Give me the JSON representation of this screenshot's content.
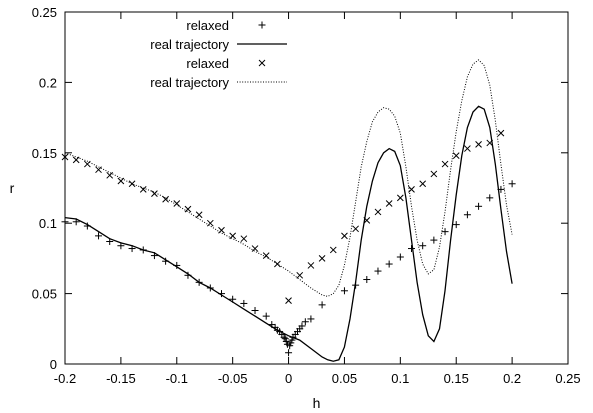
{
  "chart_data": {
    "type": "scatter",
    "xlabel": "h",
    "ylabel": "r",
    "xlim": [
      -0.2,
      0.25
    ],
    "ylim": [
      0,
      0.25
    ],
    "x_ticks": [
      "-0.2",
      "-0.15",
      "-0.1",
      "-0.05",
      "0",
      "0.05",
      "0.1",
      "0.15",
      "0.2",
      "0.25"
    ],
    "y_ticks": [
      "0",
      "0.05",
      "0.1",
      "0.15",
      "0.2",
      "0.25"
    ],
    "grid": false,
    "legend_position": "top-left",
    "series": [
      {
        "name": "relaxed",
        "style": "plus",
        "color": "#000000",
        "points": [
          [
            -0.2,
            0.101
          ],
          [
            -0.19,
            0.101
          ],
          [
            -0.18,
            0.098
          ],
          [
            -0.17,
            0.091
          ],
          [
            -0.16,
            0.087
          ],
          [
            -0.15,
            0.084
          ],
          [
            -0.14,
            0.082
          ],
          [
            -0.13,
            0.081
          ],
          [
            -0.12,
            0.077
          ],
          [
            -0.11,
            0.073
          ],
          [
            -0.1,
            0.07
          ],
          [
            -0.09,
            0.063
          ],
          [
            -0.08,
            0.058
          ],
          [
            -0.07,
            0.054
          ],
          [
            -0.06,
            0.05
          ],
          [
            -0.05,
            0.046
          ],
          [
            -0.04,
            0.043
          ],
          [
            -0.03,
            0.038
          ],
          [
            -0.02,
            0.034
          ],
          [
            -0.015,
            0.028
          ],
          [
            -0.012,
            0.026
          ],
          [
            -0.01,
            0.024
          ],
          [
            -0.008,
            0.023
          ],
          [
            -0.006,
            0.021
          ],
          [
            -0.004,
            0.019
          ],
          [
            -0.003,
            0.018
          ],
          [
            -0.002,
            0.016
          ],
          [
            -0.001,
            0.014
          ],
          [
            0.0,
            0.008
          ],
          [
            0.001,
            0.013
          ],
          [
            0.002,
            0.015
          ],
          [
            0.003,
            0.017
          ],
          [
            0.004,
            0.019
          ],
          [
            0.006,
            0.021
          ],
          [
            0.008,
            0.023
          ],
          [
            0.01,
            0.025
          ],
          [
            0.012,
            0.027
          ],
          [
            0.015,
            0.03
          ],
          [
            0.02,
            0.032
          ],
          [
            0.03,
            0.042
          ],
          [
            0.05,
            0.052
          ],
          [
            0.06,
            0.056
          ],
          [
            0.07,
            0.06
          ],
          [
            0.08,
            0.066
          ],
          [
            0.09,
            0.071
          ],
          [
            0.1,
            0.076
          ],
          [
            0.11,
            0.082
          ],
          [
            0.12,
            0.084
          ],
          [
            0.13,
            0.088
          ],
          [
            0.14,
            0.094
          ],
          [
            0.15,
            0.099
          ],
          [
            0.16,
            0.106
          ],
          [
            0.17,
            0.112
          ],
          [
            0.18,
            0.118
          ],
          [
            0.19,
            0.124
          ],
          [
            0.2,
            0.128
          ]
        ]
      },
      {
        "name": "real trajectory",
        "style": "solid",
        "color": "#000000",
        "points": [
          [
            -0.2,
            0.104
          ],
          [
            -0.19,
            0.103
          ],
          [
            -0.18,
            0.099
          ],
          [
            -0.17,
            0.094
          ],
          [
            -0.16,
            0.089
          ],
          [
            -0.15,
            0.086
          ],
          [
            -0.14,
            0.084
          ],
          [
            -0.13,
            0.081
          ],
          [
            -0.12,
            0.079
          ],
          [
            -0.11,
            0.074
          ],
          [
            -0.1,
            0.069
          ],
          [
            -0.09,
            0.064
          ],
          [
            -0.08,
            0.058
          ],
          [
            -0.07,
            0.054
          ],
          [
            -0.06,
            0.049
          ],
          [
            -0.05,
            0.044
          ],
          [
            -0.04,
            0.039
          ],
          [
            -0.03,
            0.034
          ],
          [
            -0.02,
            0.029
          ],
          [
            -0.01,
            0.024
          ],
          [
            0.0,
            0.02
          ],
          [
            0.01,
            0.017
          ],
          [
            0.02,
            0.011
          ],
          [
            0.03,
            0.005
          ],
          [
            0.035,
            0.003
          ],
          [
            0.04,
            0.002
          ],
          [
            0.045,
            0.003
          ],
          [
            0.05,
            0.012
          ],
          [
            0.055,
            0.032
          ],
          [
            0.06,
            0.058
          ],
          [
            0.065,
            0.088
          ],
          [
            0.07,
            0.112
          ],
          [
            0.075,
            0.13
          ],
          [
            0.08,
            0.143
          ],
          [
            0.085,
            0.15
          ],
          [
            0.09,
            0.153
          ],
          [
            0.095,
            0.151
          ],
          [
            0.1,
            0.141
          ],
          [
            0.105,
            0.118
          ],
          [
            0.11,
            0.088
          ],
          [
            0.115,
            0.058
          ],
          [
            0.12,
            0.035
          ],
          [
            0.125,
            0.02
          ],
          [
            0.13,
            0.016
          ],
          [
            0.135,
            0.025
          ],
          [
            0.14,
            0.052
          ],
          [
            0.145,
            0.088
          ],
          [
            0.15,
            0.12
          ],
          [
            0.155,
            0.148
          ],
          [
            0.16,
            0.168
          ],
          [
            0.165,
            0.179
          ],
          [
            0.17,
            0.183
          ],
          [
            0.175,
            0.181
          ],
          [
            0.18,
            0.168
          ],
          [
            0.185,
            0.142
          ],
          [
            0.19,
            0.11
          ],
          [
            0.195,
            0.08
          ],
          [
            0.2,
            0.057
          ]
        ]
      },
      {
        "name": "relaxed",
        "style": "cross",
        "color": "#000000",
        "points": [
          [
            -0.2,
            0.147
          ],
          [
            -0.19,
            0.145
          ],
          [
            -0.18,
            0.142
          ],
          [
            -0.17,
            0.138
          ],
          [
            -0.16,
            0.134
          ],
          [
            -0.15,
            0.13
          ],
          [
            -0.14,
            0.128
          ],
          [
            -0.13,
            0.124
          ],
          [
            -0.12,
            0.121
          ],
          [
            -0.11,
            0.117
          ],
          [
            -0.1,
            0.114
          ],
          [
            -0.09,
            0.11
          ],
          [
            -0.08,
            0.106
          ],
          [
            -0.07,
            0.1
          ],
          [
            -0.06,
            0.095
          ],
          [
            -0.05,
            0.091
          ],
          [
            -0.04,
            0.089
          ],
          [
            -0.03,
            0.082
          ],
          [
            -0.02,
            0.077
          ],
          [
            -0.01,
            0.071
          ],
          [
            0.0,
            0.045
          ],
          [
            0.01,
            0.063
          ],
          [
            0.02,
            0.07
          ],
          [
            0.03,
            0.075
          ],
          [
            0.04,
            0.081
          ],
          [
            0.05,
            0.091
          ],
          [
            0.06,
            0.096
          ],
          [
            0.07,
            0.102
          ],
          [
            0.08,
            0.108
          ],
          [
            0.09,
            0.114
          ],
          [
            0.1,
            0.118
          ],
          [
            0.11,
            0.124
          ],
          [
            0.12,
            0.128
          ],
          [
            0.13,
            0.135
          ],
          [
            0.14,
            0.142
          ],
          [
            0.15,
            0.148
          ],
          [
            0.16,
            0.153
          ],
          [
            0.17,
            0.156
          ],
          [
            0.18,
            0.157
          ],
          [
            0.19,
            0.164
          ]
        ]
      },
      {
        "name": "real trajectory",
        "style": "dotted",
        "color": "#000000",
        "points": [
          [
            -0.2,
            0.15
          ],
          [
            -0.19,
            0.147
          ],
          [
            -0.18,
            0.144
          ],
          [
            -0.17,
            0.14
          ],
          [
            -0.16,
            0.136
          ],
          [
            -0.15,
            0.132
          ],
          [
            -0.14,
            0.128
          ],
          [
            -0.13,
            0.125
          ],
          [
            -0.12,
            0.122
          ],
          [
            -0.11,
            0.118
          ],
          [
            -0.1,
            0.113
          ],
          [
            -0.09,
            0.108
          ],
          [
            -0.08,
            0.103
          ],
          [
            -0.07,
            0.098
          ],
          [
            -0.06,
            0.093
          ],
          [
            -0.05,
            0.089
          ],
          [
            -0.04,
            0.085
          ],
          [
            -0.03,
            0.08
          ],
          [
            -0.02,
            0.076
          ],
          [
            -0.01,
            0.071
          ],
          [
            0.0,
            0.066
          ],
          [
            0.01,
            0.06
          ],
          [
            0.02,
            0.054
          ],
          [
            0.03,
            0.049
          ],
          [
            0.035,
            0.048
          ],
          [
            0.04,
            0.05
          ],
          [
            0.045,
            0.056
          ],
          [
            0.05,
            0.07
          ],
          [
            0.055,
            0.09
          ],
          [
            0.06,
            0.115
          ],
          [
            0.065,
            0.14
          ],
          [
            0.07,
            0.158
          ],
          [
            0.075,
            0.172
          ],
          [
            0.08,
            0.179
          ],
          [
            0.085,
            0.182
          ],
          [
            0.09,
            0.181
          ],
          [
            0.095,
            0.176
          ],
          [
            0.1,
            0.164
          ],
          [
            0.105,
            0.14
          ],
          [
            0.11,
            0.112
          ],
          [
            0.115,
            0.088
          ],
          [
            0.12,
            0.071
          ],
          [
            0.125,
            0.064
          ],
          [
            0.13,
            0.067
          ],
          [
            0.135,
            0.083
          ],
          [
            0.14,
            0.108
          ],
          [
            0.145,
            0.138
          ],
          [
            0.15,
            0.165
          ],
          [
            0.155,
            0.187
          ],
          [
            0.16,
            0.204
          ],
          [
            0.165,
            0.213
          ],
          [
            0.17,
            0.216
          ],
          [
            0.175,
            0.212
          ],
          [
            0.18,
            0.198
          ],
          [
            0.185,
            0.173
          ],
          [
            0.19,
            0.142
          ],
          [
            0.195,
            0.113
          ],
          [
            0.2,
            0.092
          ]
        ]
      }
    ]
  }
}
